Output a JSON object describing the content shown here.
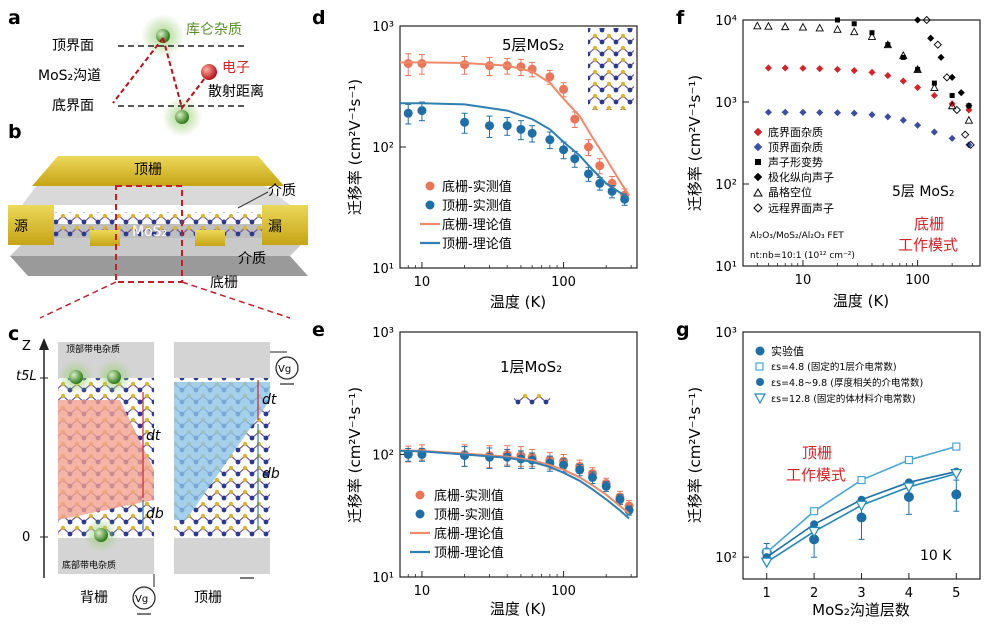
{
  "colors": {
    "exp_orange": "#e8765a",
    "exp_blue": "#1f6fa6",
    "theory_orange": "#ef8a6d",
    "theory_blue": "#2f7fb2",
    "red_text": "#d0262b",
    "green_text": "#5a8f2a",
    "gold": "#d8bb2d",
    "channel_red": "#f3a190",
    "channel_blue": "#8ec4e6",
    "f_red": "#d0262b",
    "f_blue": "#3b4fa0",
    "g_light": "#4aa6d2",
    "g_mid": "#1f6fa6",
    "g_dark": "#2387b8"
  },
  "panel_a": {
    "letter": "a",
    "top_interface": "顶界面",
    "channel": "MoS₂沟道",
    "bottom_interface": "底界面",
    "coulomb": "库仑杂质",
    "electron": "电子",
    "scatter": "散射距离"
  },
  "panel_b": {
    "letter": "b",
    "top_gate": "顶栅",
    "dielectric_top": "介质",
    "source": "源",
    "drain": "漏",
    "channel": "MoS₂",
    "dielectric_bottom": "介质",
    "bottom_gate": "底栅"
  },
  "panel_c": {
    "letter": "c",
    "z_axis": "Z",
    "t5l": "t5L",
    "zero": "0",
    "top_charge": "顶部带电杂质",
    "bottom_charge": "底部带电杂质",
    "dt": "dt",
    "db": "db",
    "vg": "Vg",
    "back_gate": "背栅",
    "top_gate": "顶栅"
  },
  "panel_d": {
    "letter": "d",
    "inset": "5层MoS₂",
    "ylabel": "迁移率 (cm²V⁻¹s⁻¹)",
    "xlabel": "温度 (K)",
    "legend": [
      "底栅-实测值",
      "顶栅-实测值",
      "底栅-理论值",
      "顶栅-理论值"
    ]
  },
  "panel_e": {
    "letter": "e",
    "inset": "1层MoS₂",
    "ylabel": "迁移率 (cm²V⁻¹s⁻¹)",
    "xlabel": "温度 (K)",
    "legend": [
      "底栅-实测值",
      "顶栅-实测值",
      "底栅-理论值",
      "顶栅-理论值"
    ]
  },
  "panel_f": {
    "letter": "f",
    "ylabel": "迁移率 (cm²V⁻¹s⁻¹)",
    "xlabel": "温度 (K)",
    "legend": [
      "底界面杂质",
      "顶界面杂质",
      "声子形变势",
      "极化纵向声子",
      "晶格空位",
      "远程界面声子"
    ],
    "layer": "5层 MoS₂",
    "mode": [
      "底栅",
      "工作模式"
    ],
    "structure": "Al₂O₃/MoS₂/Al₂O₃ FET",
    "ratio": "nt:nb=10:1 (10¹² cm⁻²)"
  },
  "panel_g": {
    "letter": "g",
    "ylabel": "迁移率 (cm²V⁻¹s⁻¹)",
    "xlabel": "MoS₂沟道层数",
    "legend": [
      "实验值",
      "εs=4.8 (固定的1层介电常数)",
      "εs=4.8~9.8 (厚度相关的介电常数)",
      "εs=12.8 (固定的体材料介电常数)"
    ],
    "mode": [
      "顶栅",
      "工作模式"
    ],
    "temp": "10 K"
  },
  "chart_data": [
    {
      "panel": "d",
      "type": "scatter",
      "xscale": "log",
      "yscale": "log",
      "xlim": [
        7,
        330
      ],
      "ylim": [
        10,
        1000
      ],
      "xticks": [
        10,
        100
      ],
      "yticks": [
        10,
        100,
        1000
      ],
      "xtick_labels": [
        "10",
        "100"
      ],
      "ytick_labels": [
        "10¹",
        "10²",
        "10³"
      ],
      "xlabel": "温度 (K)",
      "ylabel": "迁移率 (cm²V⁻¹s⁻¹)",
      "series": [
        {
          "name": "底栅-实测值",
          "kind": "points",
          "color": "exp_orange",
          "x": [
            8,
            10,
            20,
            30,
            40,
            50,
            60,
            80,
            100,
            120,
            150,
            180,
            220,
            270
          ],
          "y": [
            490,
            490,
            480,
            470,
            470,
            460,
            440,
            380,
            300,
            170,
            100,
            70,
            50,
            40
          ],
          "err": [
            100,
            90,
            80,
            80,
            70,
            70,
            60,
            50,
            40,
            25,
            15,
            10,
            7,
            5
          ]
        },
        {
          "name": "顶栅-实测值",
          "kind": "points",
          "color": "exp_blue",
          "x": [
            8,
            10,
            20,
            30,
            40,
            50,
            60,
            80,
            100,
            120,
            150,
            180,
            220,
            270
          ],
          "y": [
            190,
            200,
            160,
            150,
            150,
            140,
            130,
            115,
            95,
            80,
            60,
            50,
            43,
            37
          ],
          "err": [
            35,
            35,
            30,
            30,
            25,
            25,
            20,
            18,
            15,
            12,
            8,
            6,
            5,
            4
          ]
        },
        {
          "name": "底栅-理论值",
          "kind": "line",
          "color": "theory_orange",
          "x": [
            7,
            10,
            20,
            40,
            60,
            80,
            100,
            130,
            160,
            200,
            250,
            290
          ],
          "y": [
            500,
            500,
            495,
            470,
            420,
            340,
            250,
            180,
            120,
            80,
            52,
            40
          ]
        },
        {
          "name": "顶栅-理论值",
          "kind": "line",
          "color": "theory_blue",
          "x": [
            7,
            10,
            20,
            40,
            60,
            80,
            100,
            130,
            160,
            200,
            250,
            290
          ],
          "y": [
            230,
            230,
            225,
            200,
            170,
            140,
            110,
            85,
            65,
            50,
            42,
            37
          ]
        }
      ]
    },
    {
      "panel": "e",
      "type": "scatter",
      "xscale": "log",
      "yscale": "log",
      "xlim": [
        7,
        330
      ],
      "ylim": [
        10,
        1000
      ],
      "xticks": [
        10,
        100
      ],
      "yticks": [
        10,
        100,
        1000
      ],
      "xtick_labels": [
        "10",
        "100"
      ],
      "ytick_labels": [
        "10¹",
        "10²",
        "10³"
      ],
      "xlabel": "温度 (K)",
      "ylabel": "迁移率 (cm²V⁻¹s⁻¹)",
      "series": [
        {
          "name": "底栅-实测值",
          "kind": "points",
          "color": "exp_orange",
          "x": [
            8,
            10,
            20,
            30,
            40,
            50,
            60,
            80,
            100,
            130,
            160,
            200,
            250,
            290
          ],
          "y": [
            102,
            105,
            100,
            98,
            100,
            98,
            95,
            90,
            88,
            80,
            70,
            58,
            45,
            38
          ],
          "err": [
            15,
            15,
            20,
            20,
            18,
            18,
            15,
            14,
            12,
            10,
            8,
            6,
            5,
            4
          ]
        },
        {
          "name": "顶栅-实测值",
          "kind": "points",
          "color": "exp_blue",
          "x": [
            8,
            10,
            20,
            30,
            40,
            50,
            60,
            80,
            100,
            130,
            160,
            200,
            250,
            290
          ],
          "y": [
            100,
            100,
            98,
            95,
            95,
            92,
            90,
            85,
            82,
            75,
            65,
            55,
            43,
            35
          ],
          "err": [
            12,
            12,
            18,
            18,
            15,
            15,
            13,
            12,
            10,
            8,
            7,
            5,
            4,
            3
          ]
        },
        {
          "name": "底栅-理论值",
          "kind": "line",
          "color": "theory_orange",
          "x": [
            7,
            10,
            20,
            40,
            60,
            80,
            100,
            130,
            160,
            200,
            250,
            290
          ],
          "y": [
            108,
            107,
            102,
            96,
            90,
            82,
            75,
            65,
            56,
            47,
            38,
            33
          ]
        },
        {
          "name": "顶栅-理论值",
          "kind": "line",
          "color": "theory_blue",
          "x": [
            7,
            10,
            20,
            40,
            60,
            80,
            100,
            130,
            160,
            200,
            250,
            290
          ],
          "y": [
            107,
            106,
            100,
            94,
            87,
            79,
            71,
            61,
            52,
            43,
            35,
            30
          ]
        }
      ]
    },
    {
      "panel": "f",
      "type": "scatter",
      "xscale": "log",
      "yscale": "log",
      "xlim": [
        3,
        350
      ],
      "ylim": [
        10,
        10000
      ],
      "xticks": [
        10,
        100
      ],
      "yticks": [
        10,
        100,
        1000,
        10000
      ],
      "xtick_labels": [
        "10",
        "100"
      ],
      "ytick_labels": [
        "10¹",
        "10²",
        "10³",
        "10⁴"
      ],
      "xlabel": "温度 (K)",
      "ylabel": "迁移率 (cm²V⁻¹s⁻¹)",
      "series": [
        {
          "name": "底界面杂质",
          "marker": "diamond-filled",
          "color": "f_red",
          "x": [
            5,
            7,
            10,
            14,
            20,
            28,
            40,
            55,
            75,
            100,
            140,
            200,
            280
          ],
          "y": [
            2600,
            2600,
            2580,
            2550,
            2500,
            2420,
            2300,
            2100,
            1800,
            1500,
            1200,
            950,
            800
          ]
        },
        {
          "name": "顶界面杂质",
          "marker": "diamond-filled",
          "color": "f_blue",
          "x": [
            5,
            7,
            10,
            14,
            20,
            28,
            40,
            55,
            75,
            100,
            140,
            200,
            280
          ],
          "y": [
            750,
            750,
            748,
            745,
            740,
            730,
            700,
            660,
            600,
            520,
            430,
            360,
            300
          ]
        },
        {
          "name": "声子形变势",
          "marker": "square-filled",
          "color": "#000000",
          "x": [
            20,
            28,
            40,
            55,
            75,
            100,
            140,
            200,
            280
          ],
          "y": [
            10000,
            9000,
            7000,
            5000,
            3500,
            2500,
            1700,
            1200,
            900
          ]
        },
        {
          "name": "极化纵向声子",
          "marker": "diamond-filled",
          "color": "#000000",
          "x": [
            100,
            130,
            160,
            200,
            240,
            280
          ],
          "y": [
            10000,
            6000,
            3500,
            2000,
            1300,
            900
          ]
        },
        {
          "name": "晶格空位",
          "marker": "triangle-open",
          "color": "#000000",
          "x": [
            4,
            5,
            7,
            10,
            14,
            20,
            28,
            40,
            55,
            75,
            100,
            140,
            200,
            280
          ],
          "y": [
            8500,
            8400,
            8300,
            8200,
            8000,
            7700,
            7200,
            6300,
            5000,
            3700,
            2500,
            1500,
            900,
            600
          ]
        },
        {
          "name": "远程界面声子",
          "marker": "diamond-open",
          "color": "#000000",
          "x": [
            120,
            150,
            180,
            220,
            260,
            290
          ],
          "y": [
            10000,
            5000,
            2000,
            800,
            400,
            300
          ]
        }
      ]
    },
    {
      "panel": "g",
      "type": "line",
      "yscale": "log",
      "xlim": [
        0.5,
        5.5
      ],
      "ylim": [
        80,
        1000
      ],
      "xticks": [
        1,
        2,
        3,
        4,
        5
      ],
      "yticks": [
        100,
        1000
      ],
      "xtick_labels": [
        "1",
        "2",
        "3",
        "4",
        "5"
      ],
      "ytick_labels": [
        "10²",
        "10³"
      ],
      "xlabel": "MoS₂沟道层数",
      "ylabel": "迁移率 (cm²V⁻¹s⁻¹)",
      "series": [
        {
          "name": "实验值",
          "kind": "points",
          "color": "g_mid",
          "x": [
            1,
            2,
            3,
            4,
            5
          ],
          "y": [
            105,
            120,
            150,
            185,
            190
          ],
          "err": [
            10,
            20,
            30,
            30,
            30
          ]
        },
        {
          "name": "εs=4.8 (固定的1层介电常数)",
          "kind": "line",
          "marker": "square-open",
          "color": "g_light",
          "x": [
            1,
            2,
            3,
            4,
            5
          ],
          "y": [
            105,
            160,
            220,
            270,
            310
          ]
        },
        {
          "name": "εs=4.8~9.8 (厚度相关的介电常数)",
          "kind": "line",
          "marker": "circle-filled",
          "color": "g_mid",
          "x": [
            1,
            2,
            3,
            4,
            5
          ],
          "y": [
            100,
            140,
            180,
            215,
            240
          ]
        },
        {
          "name": "εs=12.8 (固定的体材料介电常数)",
          "kind": "line",
          "marker": "triangle-down-open",
          "color": "g_dark",
          "x": [
            1,
            2,
            3,
            4,
            5
          ],
          "y": [
            95,
            130,
            170,
            205,
            235
          ]
        }
      ]
    }
  ]
}
